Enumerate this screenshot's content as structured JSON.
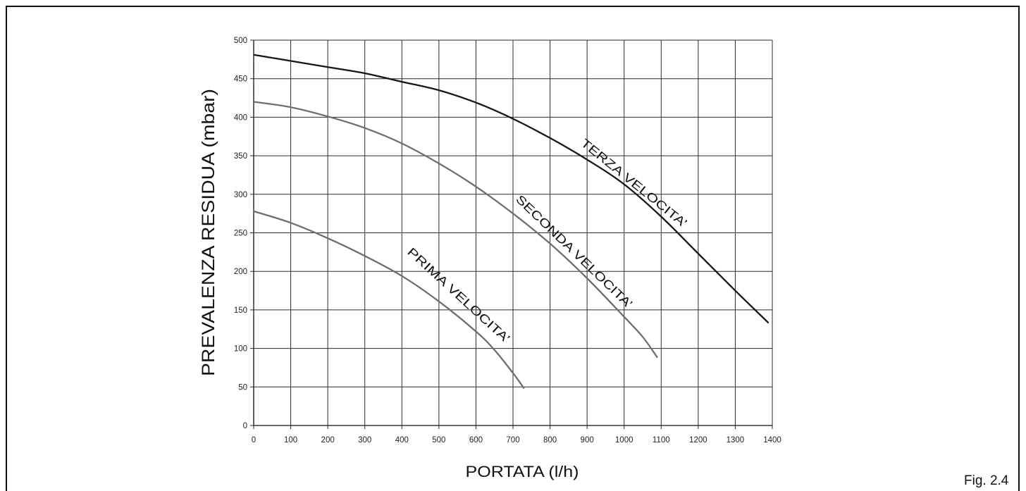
{
  "figure": {
    "caption": "Fig. 2.4"
  },
  "chart_data": {
    "type": "line",
    "title": "",
    "xlabel": "PORTATA (l/h)",
    "ylabel": "PREVALENZA RESIDUA (mbar)",
    "xlim": [
      0,
      1400
    ],
    "ylim": [
      0,
      500
    ],
    "x_ticks": [
      0,
      100,
      200,
      300,
      400,
      500,
      600,
      700,
      800,
      900,
      1000,
      1100,
      1200,
      1300,
      1400
    ],
    "y_ticks": [
      0,
      50,
      100,
      150,
      200,
      250,
      300,
      350,
      400,
      450,
      500
    ],
    "grid": true,
    "legend": "none",
    "series": [
      {
        "name": "TERZA VELOCITA’",
        "color": "#161616",
        "x": [
          0,
          100,
          200,
          300,
          400,
          500,
          600,
          700,
          800,
          900,
          1000,
          1100,
          1200,
          1300,
          1390
        ],
        "y": [
          481,
          473,
          465,
          457,
          446,
          435,
          419,
          398,
          373,
          345,
          313,
          271,
          223,
          175,
          133
        ]
      },
      {
        "name": "SECONDA VELOCITA’",
        "color": "#6e6e6e",
        "x": [
          0,
          100,
          200,
          300,
          400,
          500,
          600,
          700,
          800,
          900,
          1000,
          1050,
          1090
        ],
        "y": [
          420,
          413,
          401,
          386,
          366,
          340,
          310,
          275,
          236,
          191,
          141,
          115,
          88
        ]
      },
      {
        "name": "PRIMA VELOCITA’",
        "color": "#6e6e6e",
        "x": [
          0,
          100,
          200,
          300,
          400,
          500,
          600,
          650,
          700,
          730
        ],
        "y": [
          278,
          263,
          243,
          220,
          194,
          161,
          122,
          98,
          68,
          48
        ]
      }
    ]
  }
}
